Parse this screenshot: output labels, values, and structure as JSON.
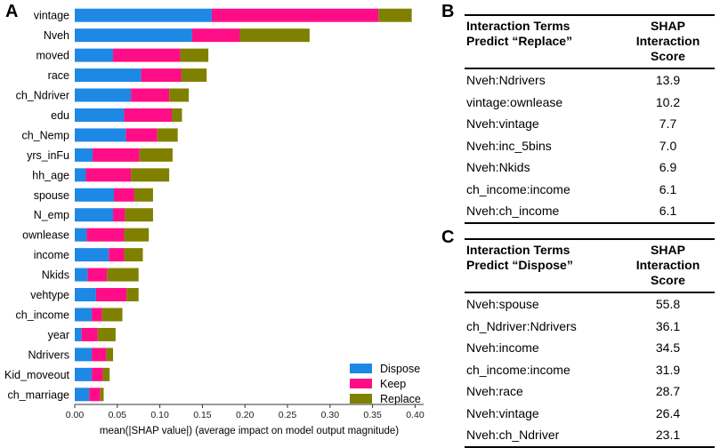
{
  "panels": {
    "a": "A",
    "b": "B",
    "c": "C"
  },
  "chart_data": {
    "type": "bar",
    "orientation": "horizontal",
    "stacked": true,
    "categories": [
      "vintage",
      "Nveh",
      "moved",
      "race",
      "ch_Ndriver",
      "edu",
      "ch_Nemp",
      "yrs_inFu",
      "hh_age",
      "spouse",
      "N_emp",
      "ownlease",
      "income",
      "Nkids",
      "vehtype",
      "ch_income",
      "year",
      "Ndrivers",
      "Kid_moveout",
      "ch_marriage"
    ],
    "series": [
      {
        "name": "Dispose",
        "color": "#1e88e5",
        "values": [
          0.161,
          0.138,
          0.045,
          0.078,
          0.066,
          0.058,
          0.06,
          0.021,
          0.013,
          0.046,
          0.045,
          0.014,
          0.04,
          0.015,
          0.025,
          0.02,
          0.008,
          0.02,
          0.02,
          0.017
        ]
      },
      {
        "name": "Keep",
        "color": "#ff0d87",
        "values": [
          0.196,
          0.056,
          0.079,
          0.047,
          0.045,
          0.056,
          0.037,
          0.055,
          0.053,
          0.024,
          0.014,
          0.044,
          0.018,
          0.023,
          0.036,
          0.012,
          0.019,
          0.017,
          0.013,
          0.013
        ]
      },
      {
        "name": "Replace",
        "color": "#808000",
        "values": [
          0.039,
          0.082,
          0.033,
          0.03,
          0.023,
          0.012,
          0.024,
          0.039,
          0.045,
          0.022,
          0.033,
          0.029,
          0.022,
          0.037,
          0.014,
          0.024,
          0.021,
          0.008,
          0.008,
          0.004
        ]
      }
    ],
    "xlim": [
      0.0,
      0.41
    ],
    "xticks": [
      "0.00",
      "0.05",
      "0.10",
      "0.15",
      "0.20",
      "0.25",
      "0.30",
      "0.35",
      "0.40"
    ],
    "xtick_values": [
      0.0,
      0.05,
      0.1,
      0.15,
      0.2,
      0.25,
      0.3,
      0.35,
      0.4
    ],
    "xlabel": "mean(|SHAP value|) (average impact on model output magnitude)",
    "legend_position": "bottom-right"
  },
  "table_b": {
    "header_col1_line1": "Interaction Terms",
    "header_col1_line2": "Predict “Replace”",
    "header_col2_line1": "SHAP Interaction",
    "header_col2_line2": "Score",
    "rows": [
      {
        "term": "Nveh:Ndrivers",
        "score": "13.9"
      },
      {
        "term": "vintage:ownlease",
        "score": "10.2"
      },
      {
        "term": "Nveh:vintage",
        "score": "7.7"
      },
      {
        "term": "Nveh:inc_5bins",
        "score": "7.0"
      },
      {
        "term": "Nveh:Nkids",
        "score": "6.9"
      },
      {
        "term": "ch_income:income",
        "score": "6.1"
      },
      {
        "term": "Nveh:ch_income",
        "score": "6.1"
      }
    ]
  },
  "table_c": {
    "header_col1_line1": "Interaction Terms",
    "header_col1_line2": "Predict “Dispose”",
    "header_col2_line1": "SHAP Interaction",
    "header_col2_line2": "Score",
    "rows": [
      {
        "term": "Nveh:spouse",
        "score": "55.8"
      },
      {
        "term": "ch_Ndriver:Ndrivers",
        "score": "36.1"
      },
      {
        "term": "Nveh:income",
        "score": "34.5"
      },
      {
        "term": "ch_income:income",
        "score": "31.9"
      },
      {
        "term": "Nveh:race",
        "score": "28.7"
      },
      {
        "term": "Nveh:vintage",
        "score": "26.4"
      },
      {
        "term": "Nveh:ch_Ndriver",
        "score": "23.1"
      }
    ]
  }
}
